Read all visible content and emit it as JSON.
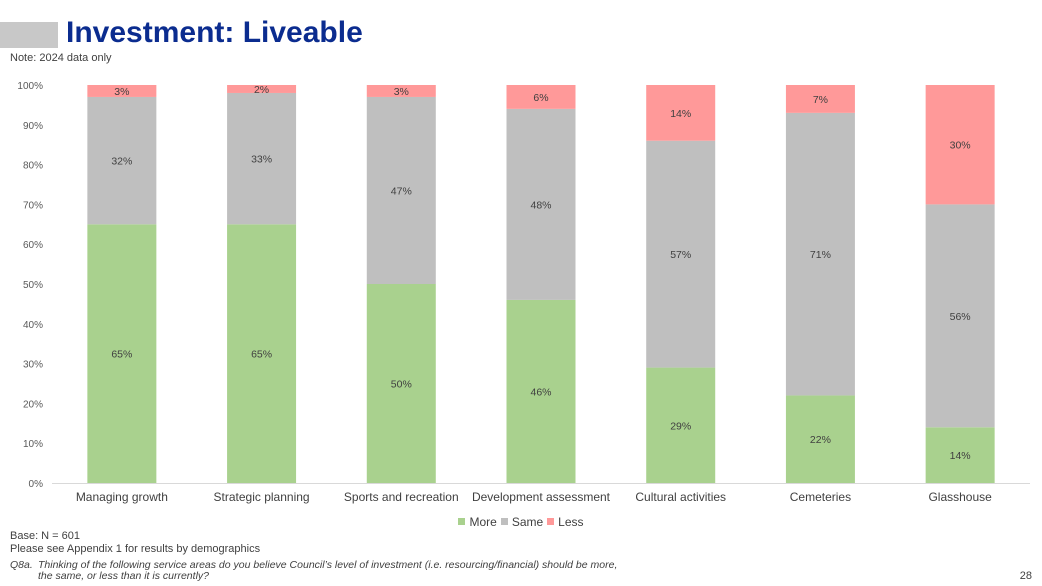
{
  "header": {
    "title": "Investment: Liveable",
    "note": "Note: 2024 data only"
  },
  "chart_data": {
    "type": "bar",
    "stacked": true,
    "categories": [
      "Managing growth",
      "Strategic planning",
      "Sports and recreation",
      "Development assessment",
      "Cultural activities",
      "Cemeteries",
      "Glasshouse"
    ],
    "series": [
      {
        "name": "More",
        "color": "#a9d18e",
        "values": [
          65,
          65,
          50,
          46,
          29,
          22,
          14
        ]
      },
      {
        "name": "Same",
        "color": "#bfbfbf",
        "values": [
          32,
          33,
          47,
          48,
          57,
          71,
          56
        ]
      },
      {
        "name": "Less",
        "color": "#ff9999",
        "values": [
          3,
          2,
          3,
          6,
          14,
          7,
          30
        ]
      }
    ],
    "yticks": [
      "0%",
      "10%",
      "20%",
      "30%",
      "40%",
      "50%",
      "60%",
      "70%",
      "80%",
      "90%",
      "100%"
    ],
    "ylim": [
      0,
      100
    ],
    "legend_position": "bottom",
    "grid": false
  },
  "footer": {
    "base": "Base: N = 601",
    "appendix": "Please see Appendix 1 for results by demographics",
    "question_number": "Q8a.",
    "question_line1": "Thinking of the following service areas do you believe Council’s level of investment (i.e. resourcing/financial) should be more,",
    "question_line2": "the same, or less than it is currently?",
    "page_number": "28"
  }
}
